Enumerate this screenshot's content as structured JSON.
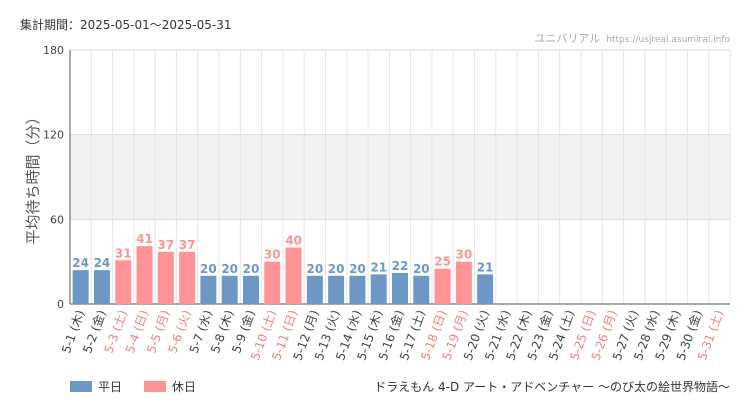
{
  "header": {
    "period": "集計期間：2025-05-01～2025-05-31",
    "site_name": "ユニバリアル",
    "site_url": "https://usjreal.asumirai.info"
  },
  "attraction": "ドラえもん 4-D アート・アドベンチャー 〜のび太の絵世界物語〜",
  "legend": [
    {
      "label": "平日",
      "color": "#6d98c6"
    },
    {
      "label": "休日",
      "color": "#ff9496"
    }
  ],
  "chart_data": {
    "type": "bar",
    "ylabel": "平均待ち時間（分）",
    "ylim": [
      0,
      180
    ],
    "yticks": [
      0,
      60,
      120,
      180
    ],
    "shaded_band": [
      60,
      120
    ],
    "categories": [
      "5-1 (木)",
      "5-2 (金)",
      "5-3 (土)",
      "5-4 (日)",
      "5-5 (月)",
      "5-6 (火)",
      "5-7 (水)",
      "5-8 (木)",
      "5-9 (金)",
      "5-10 (土)",
      "5-11 (日)",
      "5-12 (月)",
      "5-13 (火)",
      "5-14 (水)",
      "5-15 (木)",
      "5-16 (金)",
      "5-17 (土)",
      "5-18 (日)",
      "5-19 (月)",
      "5-20 (火)",
      "5-21 (水)",
      "5-22 (木)",
      "5-23 (金)",
      "5-24 (土)",
      "5-25 (日)",
      "5-26 (月)",
      "5-27 (火)",
      "5-28 (水)",
      "5-29 (木)",
      "5-30 (金)",
      "5-31 (土)"
    ],
    "values": [
      24,
      24,
      31,
      41,
      37,
      37,
      20,
      20,
      20,
      30,
      40,
      20,
      20,
      20,
      21,
      22,
      20,
      25,
      30,
      21,
      null,
      null,
      null,
      null,
      null,
      null,
      null,
      null,
      null,
      null,
      null
    ],
    "day_type": [
      "平日",
      "平日",
      "休日",
      "休日",
      "休日",
      "休日",
      "平日",
      "平日",
      "平日",
      "休日",
      "休日",
      "平日",
      "平日",
      "平日",
      "平日",
      "平日",
      "平日",
      "休日",
      "休日",
      "平日",
      "平日",
      "平日",
      "平日",
      "平日",
      "休日",
      "休日",
      "平日",
      "平日",
      "平日",
      "平日",
      "休日"
    ],
    "colors": {
      "weekday": "#6d98c6",
      "holiday": "#ff9496",
      "holiday_label": "#f08080",
      "weekday_label": "#444444",
      "grid": "#e6e6e6",
      "band": "#f2f2f2"
    }
  }
}
